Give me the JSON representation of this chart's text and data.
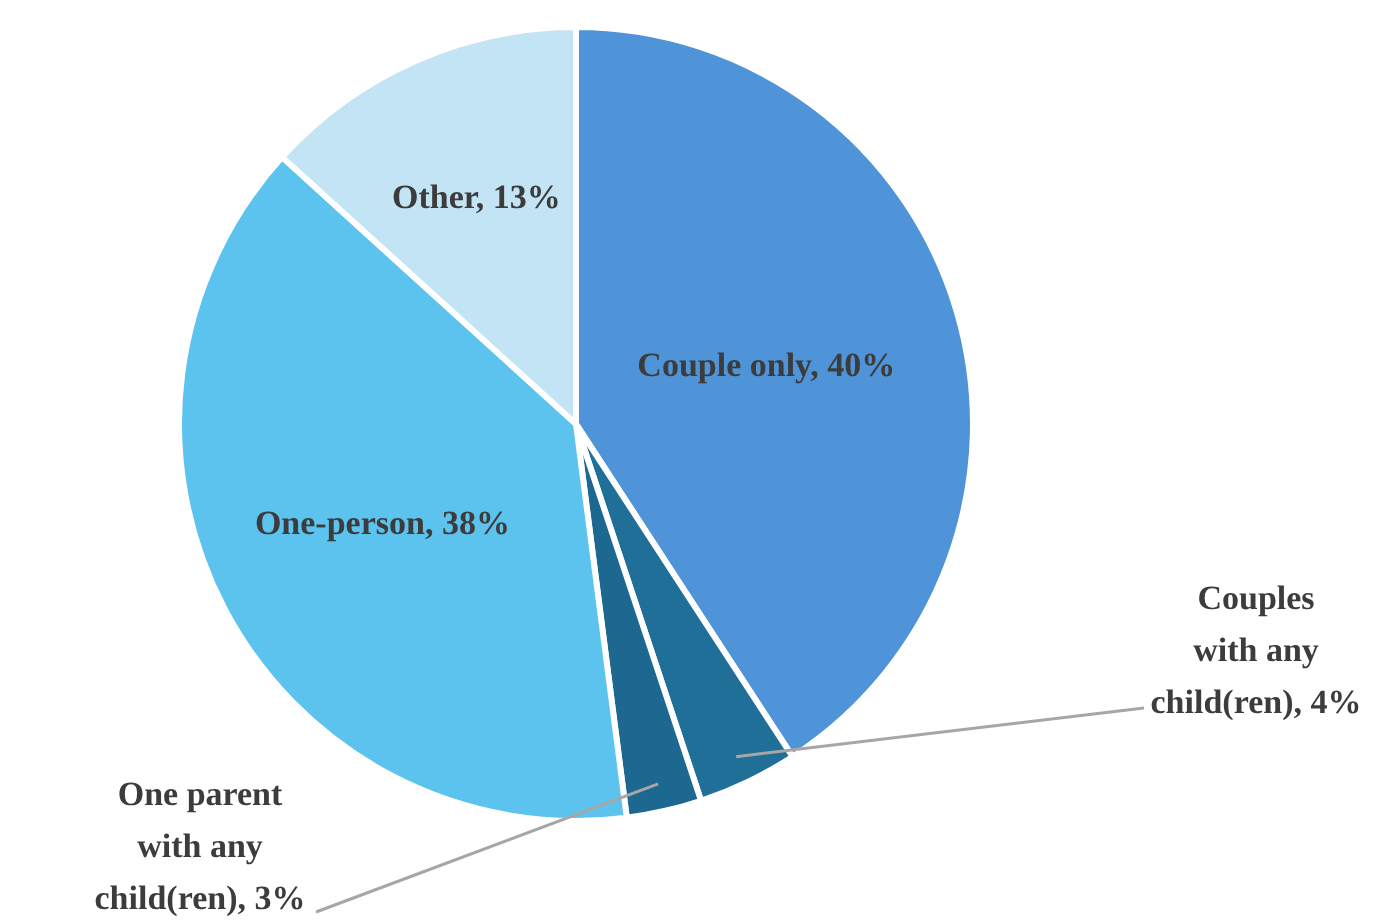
{
  "chart_data": {
    "type": "pie",
    "categories": [
      "Couple only",
      "Couples with any child(ren)",
      "One parent with any child(ren)",
      "One-person",
      "Other"
    ],
    "values": [
      40,
      4,
      3,
      38,
      13
    ],
    "colors": [
      "#4f94d8",
      "#1f6f98",
      "#1d6890",
      "#5cc3ef",
      "#c3e4f5"
    ],
    "value_labels": [
      "40%",
      "4%",
      "3%",
      "38%",
      "13%"
    ],
    "legend": false
  }
}
